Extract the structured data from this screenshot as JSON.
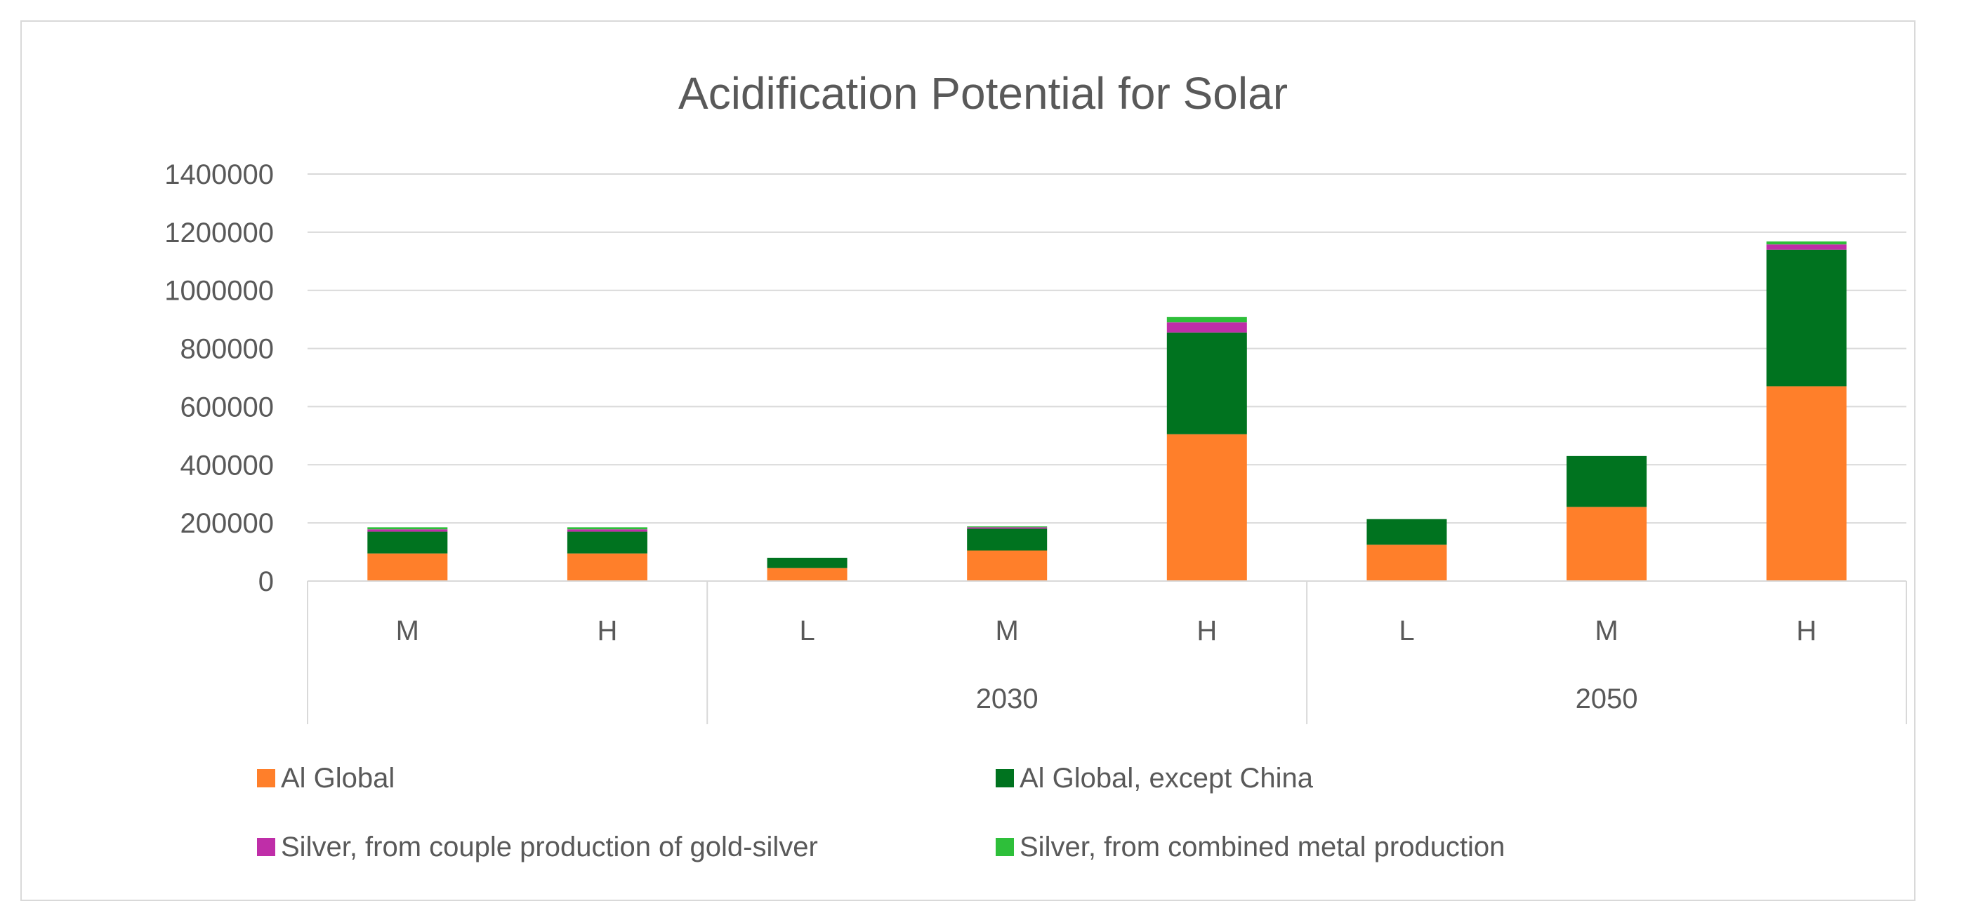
{
  "chart_data": {
    "type": "bar",
    "stacked": true,
    "title": "Acidification Potential for Solar",
    "xlabel": "",
    "ylabel": "",
    "ylim": [
      0,
      1400000
    ],
    "yticks": [
      0,
      200000,
      400000,
      600000,
      800000,
      1000000,
      1200000,
      1400000
    ],
    "ytick_labels": [
      "0",
      "200000",
      "400000",
      "600000",
      "800000",
      "1000000",
      "1200000",
      "1400000"
    ],
    "grid": true,
    "legend_position": "bottom",
    "categories": [
      "M",
      "H",
      "L",
      "M",
      "H",
      "L",
      "M",
      "H"
    ],
    "groups": [
      {
        "label": "",
        "categories": [
          "M",
          "H"
        ]
      },
      {
        "label": "2030",
        "categories": [
          "L",
          "M",
          "H"
        ]
      },
      {
        "label": "2050",
        "categories": [
          "L",
          "M",
          "H"
        ]
      }
    ],
    "series": [
      {
        "name": "Al Global",
        "color": "#ff7f2a",
        "values": [
          95000,
          95000,
          45000,
          105000,
          505000,
          125000,
          255000,
          670000
        ]
      },
      {
        "name": "Al Global, except China",
        "color": "#00731f",
        "values": [
          75000,
          75000,
          35000,
          75000,
          350000,
          88000,
          175000,
          470000
        ]
      },
      {
        "name": "Silver, from couple production of gold-silver",
        "color": "#bf2ea8",
        "values": [
          8000,
          8000,
          0,
          5000,
          35000,
          0,
          0,
          18000
        ]
      },
      {
        "name": "Silver, from combined metal production",
        "color": "#2ebf3a",
        "values": [
          7000,
          7000,
          0,
          3000,
          18000,
          0,
          0,
          10000
        ]
      }
    ]
  }
}
